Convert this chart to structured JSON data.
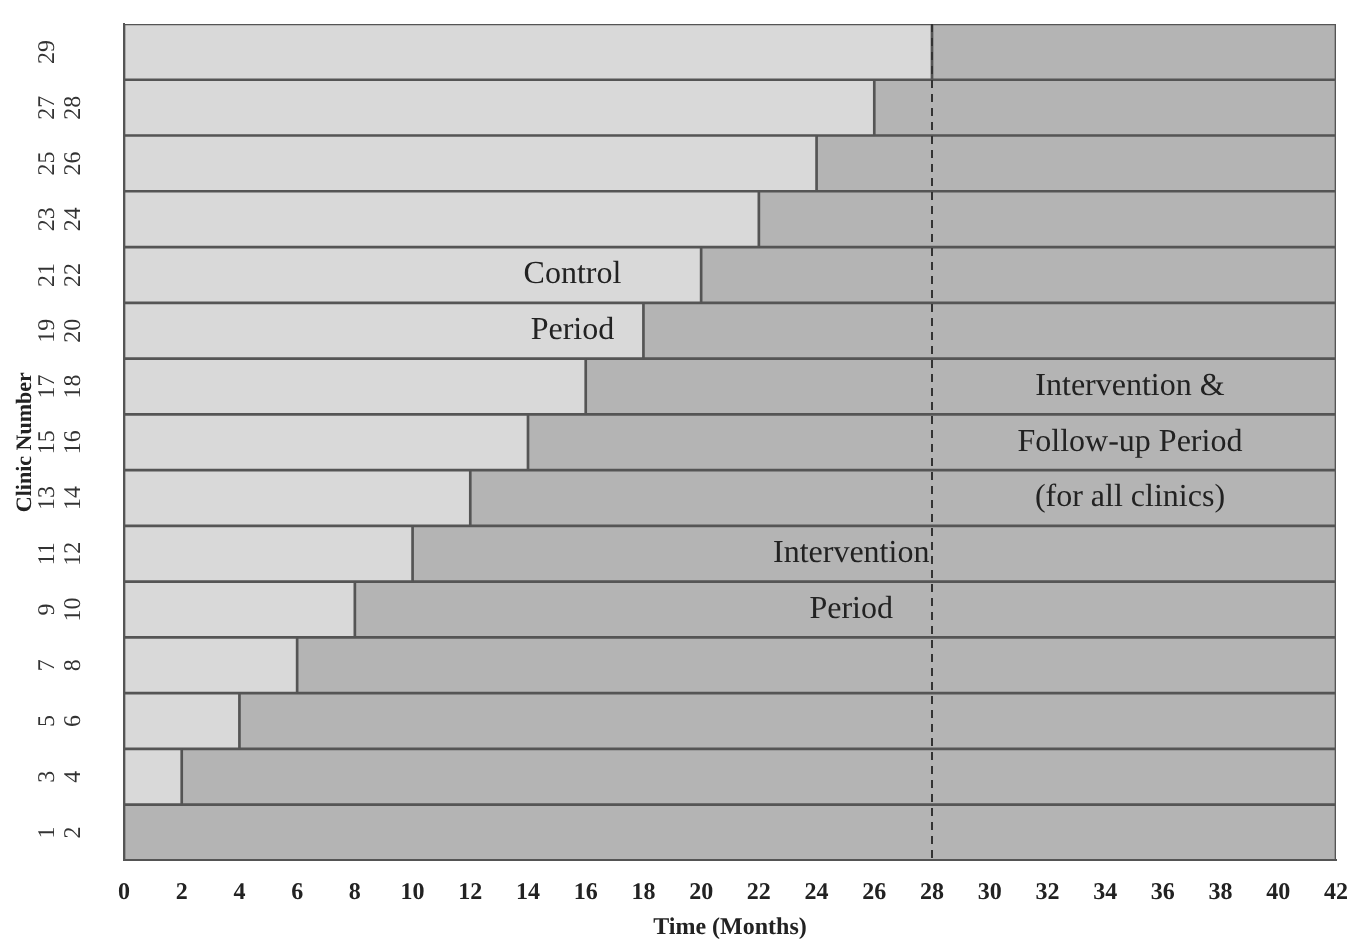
{
  "chart_data": {
    "type": "bar",
    "orientation": "horizontal",
    "stacked": true,
    "xlabel": "Time (Months)",
    "ylabel": "Clinic Number",
    "categories": [
      "29",
      "27 28",
      "25 26",
      "23 24",
      "21 22",
      "19 20",
      "17 18",
      "15 16",
      "13 14",
      "11 12",
      "9 10",
      "7 8",
      "5 6",
      "3 4",
      "1 2"
    ],
    "series": [
      {
        "color": "#d9d9d9",
        "values": [
          28,
          26,
          24,
          22,
          20,
          18,
          16,
          14,
          12,
          10,
          8,
          6,
          4,
          2,
          0
        ]
      },
      {
        "color": "#b4b4b4",
        "values": [
          14,
          16,
          18,
          20,
          22,
          24,
          26,
          28,
          30,
          32,
          34,
          36,
          38,
          40,
          42
        ]
      }
    ],
    "xlim": [
      0,
      42
    ],
    "xticks": [
      0,
      2,
      4,
      6,
      8,
      10,
      12,
      14,
      16,
      18,
      20,
      22,
      24,
      26,
      28,
      30,
      32,
      34,
      36,
      38,
      40,
      42
    ],
    "ref_lines": [
      {
        "axis": "x",
        "value": 28,
        "line_style": "dashed",
        "color": "#333333"
      }
    ],
    "annotations": [
      "Control\nPeriod",
      "Intervention\nPeriod",
      "Intervention &\nFollow-up Period\n(for all clinics)"
    ],
    "grid": false,
    "legend": false
  }
}
